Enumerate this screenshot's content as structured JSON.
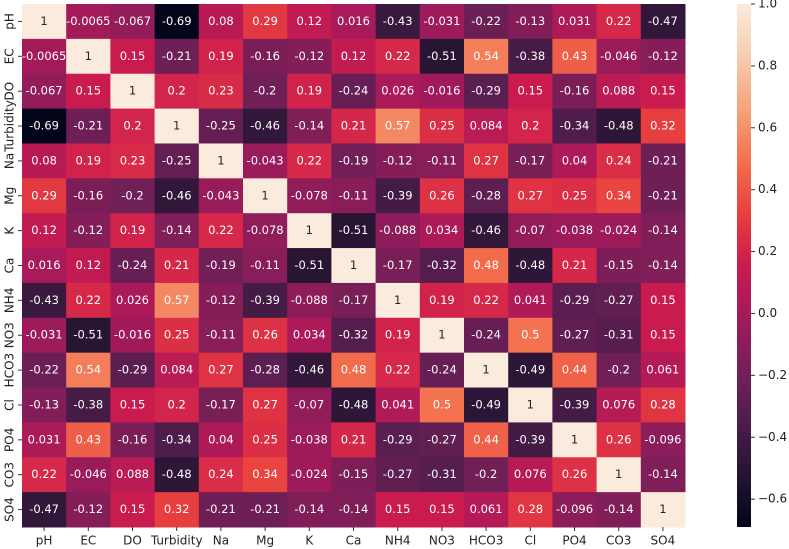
{
  "chart_data": {
    "type": "heatmap",
    "categories": [
      "pH",
      "EC",
      "DO",
      "Turbidity",
      "Na",
      "Mg",
      "K",
      "Ca",
      "NH4",
      "NO3",
      "HCO3",
      "Cl",
      "PO4",
      "CO3",
      "SO4"
    ],
    "y_categories": [
      "pH",
      "EC",
      "DO",
      "Turbidity",
      "Na",
      "Mg",
      "K",
      "Ca",
      "NH4",
      "NO3",
      "HCO3",
      "Cl",
      "PO4",
      "CO3",
      "SO4"
    ],
    "values": [
      [
        1,
        -0.0065,
        -0.067,
        -0.69,
        0.08,
        0.29,
        0.12,
        0.016,
        -0.43,
        -0.031,
        -0.22,
        -0.13,
        0.031,
        0.22,
        -0.47
      ],
      [
        -0.0065,
        1,
        0.15,
        -0.21,
        0.19,
        -0.16,
        -0.12,
        0.12,
        0.22,
        -0.51,
        0.54,
        -0.38,
        0.43,
        -0.046,
        -0.12
      ],
      [
        -0.067,
        0.15,
        1,
        0.2,
        0.23,
        -0.2,
        0.19,
        -0.24,
        0.026,
        -0.016,
        -0.29,
        0.15,
        -0.16,
        0.088,
        0.15
      ],
      [
        -0.69,
        -0.21,
        0.2,
        1,
        -0.25,
        -0.46,
        -0.14,
        0.21,
        0.57,
        0.25,
        0.084,
        0.2,
        -0.34,
        -0.48,
        0.32
      ],
      [
        0.08,
        0.19,
        0.23,
        -0.25,
        1,
        -0.043,
        0.22,
        -0.19,
        -0.12,
        -0.11,
        0.27,
        -0.17,
        0.04,
        0.24,
        -0.21
      ],
      [
        0.29,
        -0.16,
        -0.2,
        -0.46,
        -0.043,
        1,
        -0.078,
        -0.11,
        -0.39,
        0.26,
        -0.28,
        0.27,
        0.25,
        0.34,
        -0.21
      ],
      [
        0.12,
        -0.12,
        0.19,
        -0.14,
        0.22,
        -0.078,
        1,
        -0.51,
        -0.088,
        0.034,
        -0.46,
        -0.07,
        -0.038,
        -0.024,
        -0.14
      ],
      [
        0.016,
        0.12,
        -0.24,
        0.21,
        -0.19,
        -0.11,
        -0.51,
        1,
        -0.17,
        -0.32,
        0.48,
        -0.48,
        0.21,
        -0.15,
        -0.14
      ],
      [
        -0.43,
        0.22,
        0.026,
        0.57,
        -0.12,
        -0.39,
        -0.088,
        -0.17,
        1,
        0.19,
        0.22,
        0.041,
        -0.29,
        -0.27,
        0.15
      ],
      [
        -0.031,
        -0.51,
        -0.016,
        0.25,
        -0.11,
        0.26,
        0.034,
        -0.32,
        0.19,
        1,
        -0.24,
        0.5,
        -0.27,
        -0.31,
        0.15
      ],
      [
        -0.22,
        0.54,
        -0.29,
        0.084,
        0.27,
        -0.28,
        -0.46,
        0.48,
        0.22,
        -0.24,
        1,
        -0.49,
        0.44,
        -0.2,
        0.061
      ],
      [
        -0.13,
        -0.38,
        0.15,
        0.2,
        -0.17,
        0.27,
        -0.07,
        -0.48,
        0.041,
        0.5,
        -0.49,
        1,
        -0.39,
        0.076,
        0.28
      ],
      [
        0.031,
        0.43,
        -0.16,
        -0.34,
        0.04,
        0.25,
        -0.038,
        0.21,
        -0.29,
        -0.27,
        0.44,
        -0.39,
        1,
        0.26,
        -0.096
      ],
      [
        0.22,
        -0.046,
        0.088,
        -0.48,
        0.24,
        0.34,
        -0.024,
        -0.15,
        -0.27,
        -0.31,
        -0.2,
        0.076,
        0.26,
        1,
        -0.14
      ],
      [
        -0.47,
        -0.12,
        0.15,
        0.32,
        -0.21,
        -0.21,
        -0.14,
        -0.14,
        0.15,
        0.15,
        0.061,
        0.28,
        -0.096,
        -0.14,
        1
      ]
    ],
    "colors": [
      "#03051a",
      "#251432",
      "#4c1d4b",
      "#751f58",
      "#a11a5b",
      "#cb1b4f",
      "#e83f3f",
      "#f3704d",
      "#f6a47b",
      "#f7cdb0",
      "#faebdd"
    ],
    "colorbar_lim": [
      -0.69,
      1
    ],
    "colorbar_ticks": [
      {
        "value": 1,
        "label": "1.0"
      },
      0.8,
      0.6,
      0.4,
      0.2,
      {
        "value": 0,
        "label": "0.0"
      },
      {
        "value": -0.2,
        "label": "−0.2"
      },
      {
        "value": -0.4,
        "label": "−0.4"
      },
      {
        "value": -0.6,
        "label": "−0.6"
      }
    ]
  }
}
